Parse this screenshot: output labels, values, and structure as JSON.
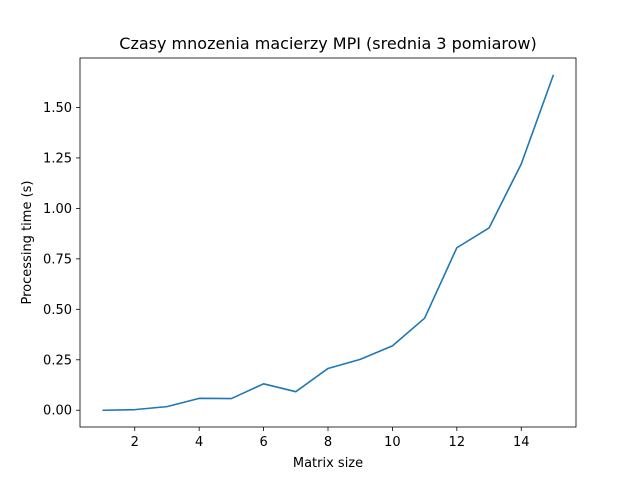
{
  "chart_data": {
    "type": "line",
    "title": "Czasy mnozenia macierzy MPI (srednia 3 pomiarow)",
    "xlabel": "Matrix size",
    "ylabel": "Processing time (s)",
    "xlim": [
      0.3,
      15.7
    ],
    "ylim": [
      -0.083,
      1.745
    ],
    "x_ticks": [
      2,
      4,
      6,
      8,
      10,
      12,
      14
    ],
    "x_tick_labels": [
      "2",
      "4",
      "6",
      "8",
      "10",
      "12",
      "14"
    ],
    "y_ticks": [
      0.0,
      0.25,
      0.5,
      0.75,
      1.0,
      1.25,
      1.5
    ],
    "y_tick_labels": [
      "0.00",
      "0.25",
      "0.50",
      "0.75",
      "1.00",
      "1.25",
      "1.50"
    ],
    "grid": false,
    "series": [
      {
        "color": "#1f77b4",
        "x": [
          1,
          2,
          3,
          4,
          5,
          6,
          7,
          8,
          9,
          10,
          11,
          12,
          13,
          14,
          15
        ],
        "values": [
          0.0,
          0.003,
          0.018,
          0.059,
          0.058,
          0.131,
          0.092,
          0.207,
          0.252,
          0.319,
          0.456,
          0.805,
          0.903,
          1.22,
          1.662
        ]
      }
    ]
  }
}
